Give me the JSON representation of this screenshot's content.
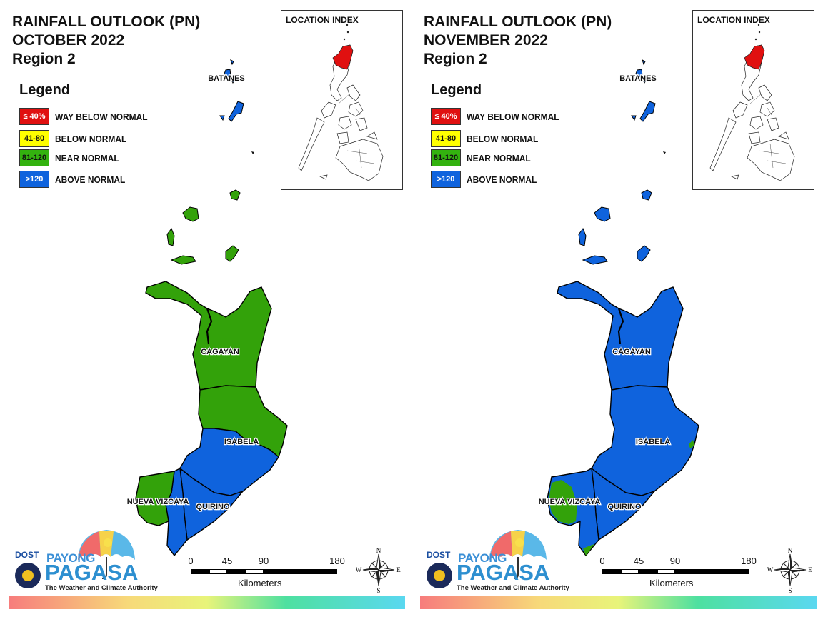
{
  "panels": [
    {
      "title_lines": [
        "RAINFALL OUTLOOK (PN)",
        "OCTOBER 2022",
        "Region 2"
      ],
      "fills": {
        "batanes": "#0f63dd",
        "babuyan": "#33a20a",
        "cagayan": "#33a20a",
        "isabela_north": "#33a20a",
        "isabela_south": "#0f63dd",
        "quirino": "#0f63dd",
        "nueva_vizcaya_east": "#0f63dd",
        "nueva_vizcaya_west": "#33a20a"
      }
    },
    {
      "title_lines": [
        "RAINFALL OUTLOOK (PN)",
        "NOVEMBER 2022",
        "Region 2"
      ],
      "fills": {
        "batanes": "#0f63dd",
        "babuyan": "#0f63dd",
        "cagayan": "#0f63dd",
        "isabela_north": "#0f63dd",
        "isabela_south": "#0f63dd",
        "quirino": "#0f63dd",
        "nueva_vizcaya_east": "#0f63dd",
        "nueva_vizcaya_west": "#33a20a"
      }
    }
  ],
  "legend": {
    "title": "Legend",
    "items": [
      {
        "code": "≤ 40%",
        "label": "WAY BELOW NORMAL",
        "color": "#e01010",
        "text_color": "#ffffff"
      },
      {
        "code": "41-80",
        "label": "BELOW NORMAL",
        "color": "#ffff00",
        "text_color": "#111111"
      },
      {
        "code": "81-120",
        "label": "NEAR NORMAL",
        "color": "#33b20f",
        "text_color": "#111111"
      },
      {
        "code": ">120",
        "label": "ABOVE NORMAL",
        "color": "#0f63dd",
        "text_color": "#ffffff"
      }
    ]
  },
  "location_index": {
    "title": "LOCATION INDEX",
    "highlight_color": "#e01010"
  },
  "places": {
    "batanes": "BATANES",
    "cagayan": "CAGAYAN",
    "isabela": "ISABELA",
    "nueva_vizcaya": "NUEVA VIZCAYA",
    "quirino": "QUIRINO"
  },
  "scale": {
    "ticks": [
      "0",
      "45",
      "90",
      "180"
    ],
    "units": "Kilometers"
  },
  "compass": {
    "n": "N",
    "s": "S",
    "e": "E",
    "w": "W"
  },
  "logo": {
    "dost": "DOST",
    "payong": "PAYONG",
    "pagasa": "PAGASA",
    "tagline": "The Weather and Climate Authority"
  }
}
